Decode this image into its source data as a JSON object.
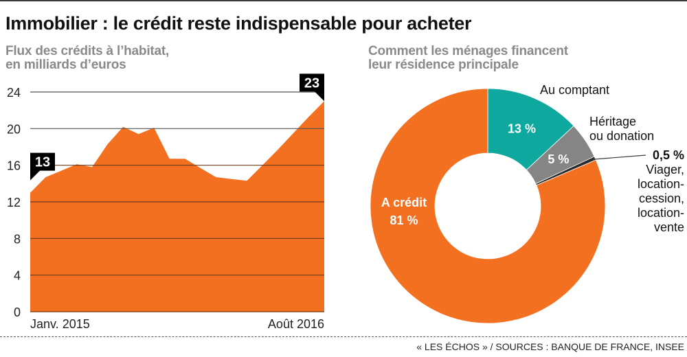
{
  "title": "Immobilier : le crédit reste indispensable pour acheter",
  "source": "« LES ÉCHOS » / SOURCES : BANQUE DE FRANCE, INSEE",
  "colors": {
    "orange": "#f37021",
    "teal": "#0fa89e",
    "grey": "#858585",
    "dark": "#2b2b2b",
    "gridline": "#5a3a2a",
    "subtitle": "#8a8a8a"
  },
  "chart_data": [
    {
      "type": "area",
      "title": "Flux des crédits à l’habitat, en milliards d’euros",
      "title_lines": [
        "Flux des crédits à l’habitat,",
        "en milliards d’euros"
      ],
      "xlabel": "",
      "ylabel": "",
      "x_tick_labels": [
        "Janv. 2015",
        "Août 2016"
      ],
      "x": [
        "2015-01",
        "2015-02",
        "2015-03",
        "2015-04",
        "2015-05",
        "2015-06",
        "2015-07",
        "2015-08",
        "2015-09",
        "2015-10",
        "2015-11",
        "2015-12",
        "2016-01",
        "2016-02",
        "2016-03",
        "2016-04",
        "2016-05",
        "2016-06",
        "2016-07",
        "2016-08"
      ],
      "values": [
        13.0,
        14.7,
        15.4,
        16.1,
        15.8,
        18.3,
        20.2,
        19.4,
        20.1,
        16.7,
        16.7,
        15.7,
        14.7,
        14.5,
        14.3,
        16.0,
        17.7,
        19.5,
        21.3,
        23.0
      ],
      "ylim": [
        0,
        24
      ],
      "y_ticks": [
        0,
        4,
        8,
        12,
        16,
        20,
        24
      ],
      "grid": true,
      "annotations": [
        {
          "label": "13",
          "index": 0
        },
        {
          "label": "23",
          "index": 19
        }
      ]
    },
    {
      "type": "pie",
      "title": "Comment les ménages financent leur résidence principale",
      "title_lines": [
        "Comment les ménages financent",
        "leur résidence principale"
      ],
      "donut": true,
      "slices": [
        {
          "name": "Au comptant",
          "value": 13,
          "label": "13 %",
          "color": "#0fa89e"
        },
        {
          "name": "Héritage ou donation",
          "value": 5,
          "label": "5 %",
          "color": "#858585"
        },
        {
          "name": "Viager, location-cession, location-vente",
          "value": 0.5,
          "label": "0,5 %",
          "color": "#2b2b2b"
        },
        {
          "name": "A crédit",
          "value": 81,
          "label": "81 %",
          "color": "#f37021"
        }
      ],
      "external_labels": {
        "au_comptant": "Au comptant",
        "heritage": [
          "Héritage",
          "ou donation"
        ],
        "viager_value": "0,5 %",
        "viager": [
          "Viager,",
          "location-",
          "cession,",
          "location-",
          "vente"
        ]
      },
      "internal_labels": {
        "credit_name": "A crédit",
        "credit_value": "81 %",
        "comptant_value": "13 %",
        "heritage_value": "5 %"
      }
    }
  ]
}
